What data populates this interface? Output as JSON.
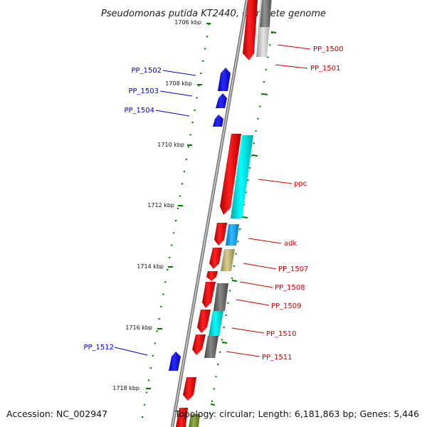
{
  "title": "Pseudomonas putida KT2440, complete genome",
  "accession": "Accession: NC_002947",
  "topology": "Topology: circular; Length: 6,181,863 bp; Genes: 5,446",
  "colors": {
    "forward_gene": "#ee1111",
    "reverse_gene": "#1111ee",
    "forward_label": "#cc0000",
    "reverse_label": "#0000cc",
    "cds_cyan": "#00dddd",
    "cds_light_blue": "#22aaee",
    "cds_khaki": "#bbb070",
    "cds_dark_gray": "#666666",
    "cds_light_gray": "#bbbbbb",
    "backbone": "#888888",
    "tick": "#007700"
  },
  "ticks": [
    {
      "label": "1706 kbp"
    },
    {
      "label": "1708 kbp"
    },
    {
      "label": "1710 kbp"
    },
    {
      "label": "1712 kbp"
    },
    {
      "label": "1714 kbp"
    },
    {
      "label": "1716 kbp"
    },
    {
      "label": "1718 kbp"
    }
  ],
  "genes_forward": [
    {
      "label": "PP_1500"
    },
    {
      "label": "PP_1501"
    },
    {
      "label": "ppc"
    },
    {
      "label": "adk"
    },
    {
      "label": "PP_1507"
    },
    {
      "label": "PP_1508"
    },
    {
      "label": "PP_1509"
    },
    {
      "label": "PP_1510"
    },
    {
      "label": "PP_1511"
    }
  ],
  "genes_reverse": [
    {
      "label": "PP_1502"
    },
    {
      "label": "PP_1503"
    },
    {
      "label": "PP_1504"
    },
    {
      "label": "PP_1512"
    }
  ]
}
